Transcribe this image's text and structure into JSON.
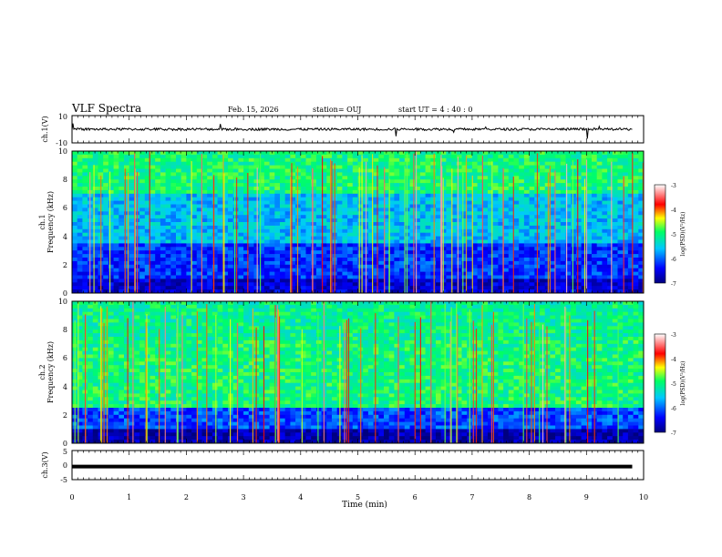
{
  "header": {
    "title": "VLF Spectra",
    "date": "Feb. 15, 2026",
    "station": "station= OUJ",
    "start": "start UT =  4 : 40 : 0"
  },
  "colors": {
    "bar_low": "#00007f",
    "bar_mid1": "#0000ff",
    "bar_mid2": "#00c8ff",
    "bar_mid3": "#00ff64",
    "bar_mid4": "#ffff00",
    "bar_mid5": "#ff0000",
    "bar_high": "#ffffff"
  },
  "chart_data": [
    {
      "type": "line",
      "ylabel": "ch.1(V)",
      "ylim": [
        -10,
        10
      ],
      "ytick_labels": [
        "10",
        "-10"
      ],
      "xlim": [
        0,
        10
      ],
      "description_level": "waveform fluctuating around 0 V",
      "x": [
        0,
        1,
        2,
        3,
        4,
        5,
        6,
        7,
        8,
        9,
        9.8
      ],
      "y": [
        0,
        0,
        0,
        0,
        0,
        0,
        0,
        0,
        0,
        0,
        0
      ]
    },
    {
      "type": "heatmap",
      "ylabel_line1": "ch.1",
      "ylabel_line2": "Frequency (kHz)",
      "ylim": [
        0,
        10
      ],
      "ytick_labels": [
        "0",
        "2",
        "4",
        "6",
        "8",
        "10"
      ],
      "xlim": [
        0,
        10
      ],
      "colorbar": {
        "label": "log(PSD)(V²/Hz)",
        "range": [
          -7,
          -3
        ],
        "tick_labels": [
          "-3",
          "-4",
          "-5",
          "-6",
          "-7"
        ]
      }
    },
    {
      "type": "heatmap",
      "ylabel_line1": "ch.2",
      "ylabel_line2": "Frequency (kHz)",
      "ylim": [
        0,
        10
      ],
      "ytick_labels": [
        "0",
        "2",
        "4",
        "6",
        "8",
        "10"
      ],
      "xlim": [
        0,
        10
      ],
      "colorbar": {
        "label": "log(PSD)(V²/Hz)",
        "range": [
          -7,
          -3
        ],
        "tick_labels": [
          "-3",
          "-4",
          "-5",
          "-6",
          "-7"
        ]
      }
    },
    {
      "type": "line",
      "ylabel": "ch.3(V)",
      "ylim": [
        -5,
        5
      ],
      "ytick_labels": [
        "5",
        "0",
        "-5"
      ],
      "xlim": [
        0,
        10
      ],
      "x": [
        0,
        9.8
      ],
      "y": [
        -0.5,
        -0.5
      ]
    }
  ],
  "xaxis": {
    "label": "Time (min)",
    "tick_labels": [
      "0",
      "1",
      "2",
      "3",
      "4",
      "5",
      "6",
      "7",
      "8",
      "9",
      "10"
    ]
  }
}
